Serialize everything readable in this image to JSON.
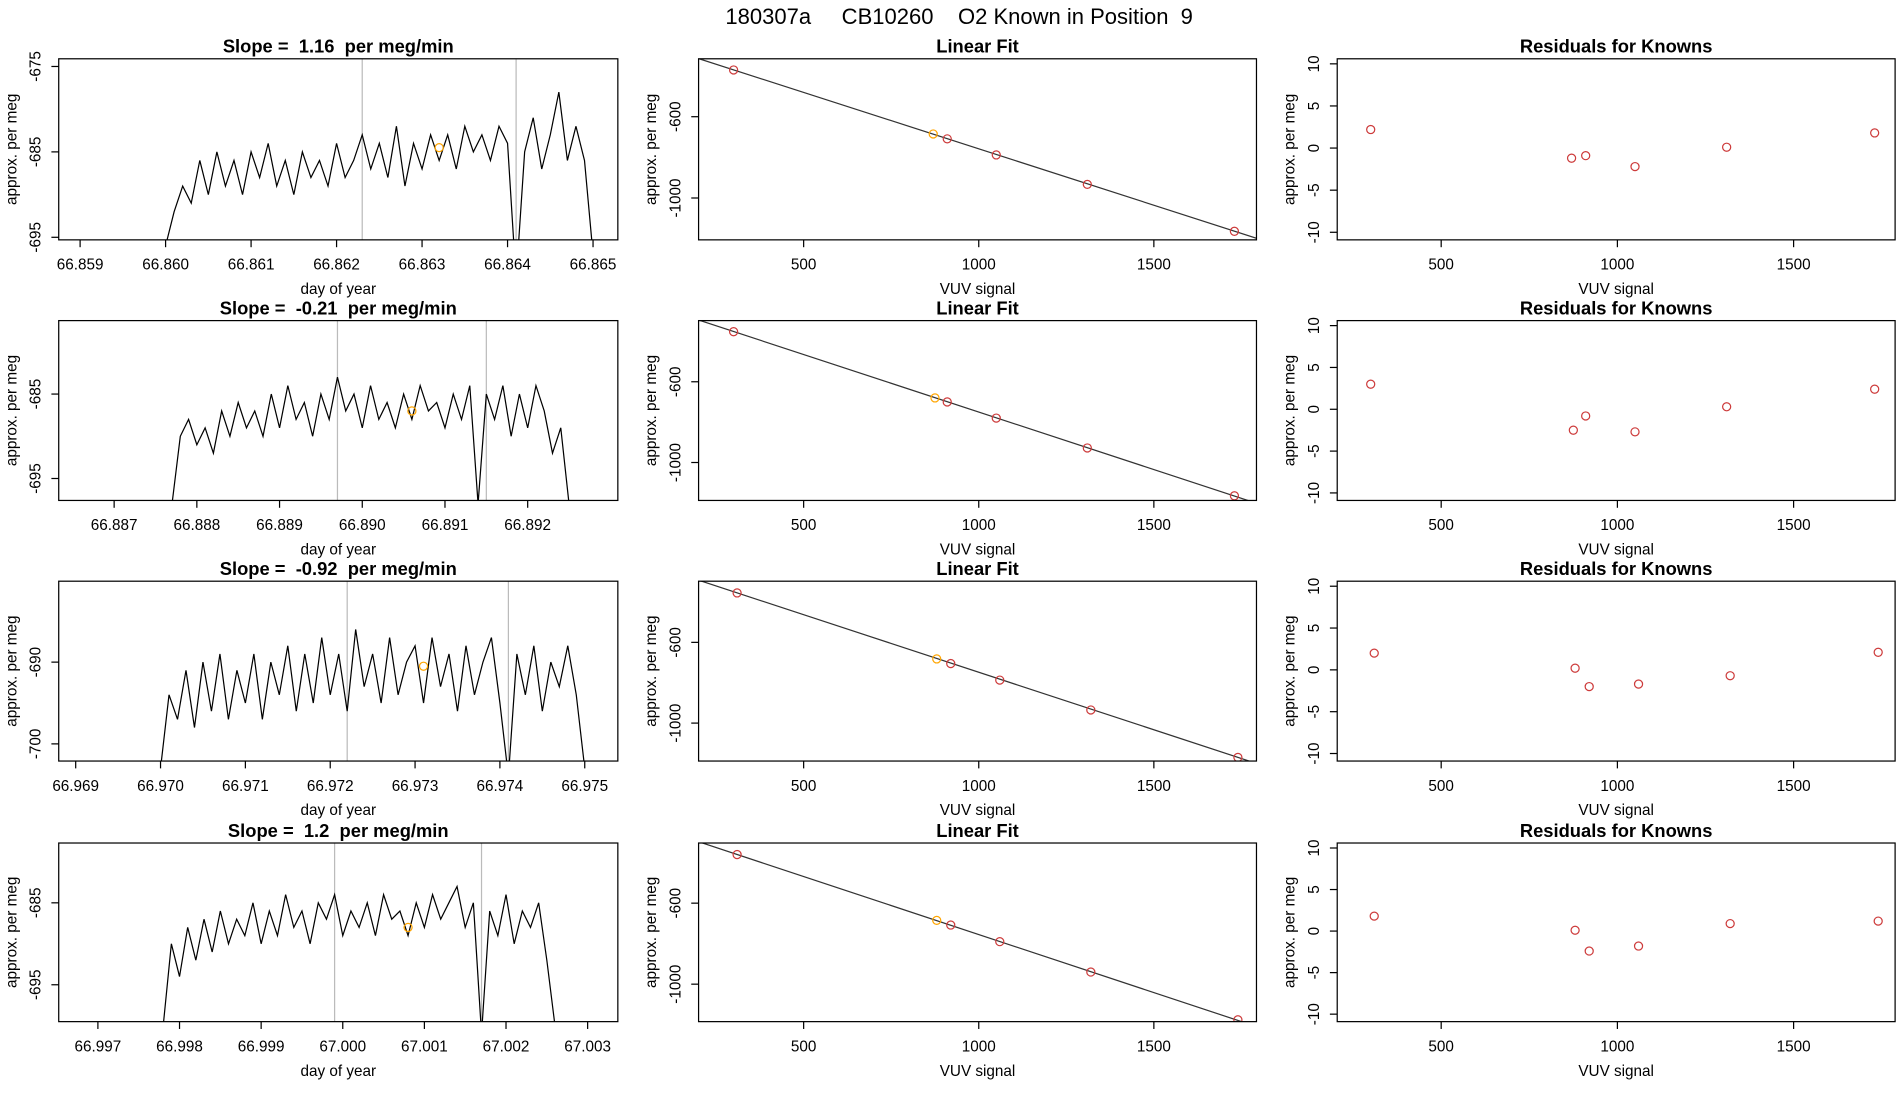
{
  "title": "180307a     CB10260    O2 Known in Position  9",
  "chart_data": [
    {
      "type": "line",
      "title": "Slope =  1.16  per meg/min",
      "xlabel": "day of year",
      "ylabel": "approx. per meg",
      "xlim": [
        66.85875,
        66.86529
      ],
      "xticks": [
        66.859,
        {
          "value": 66.86,
          "label": "66.860"
        },
        66.861,
        66.862,
        66.863,
        66.864,
        66.865
      ],
      "ylim": [
        -695.3,
        -674.1
      ],
      "yticks": [
        -695,
        -685,
        -675
      ],
      "vlines": [
        66.8623,
        66.8641
      ],
      "series": [
        {
          "color": "#000000",
          "x": [
            66.86,
            66.8601,
            66.8602,
            66.8603,
            66.8604,
            66.8605,
            66.8606,
            66.8607,
            66.8608,
            66.8609,
            66.861,
            66.8611,
            66.8612,
            66.8613,
            66.8614,
            66.8615,
            66.8616,
            66.8617,
            66.8618,
            66.8619,
            66.862,
            66.8621,
            66.8622,
            66.8623,
            66.8624,
            66.8625,
            66.8626,
            66.8627,
            66.8628,
            66.8629,
            66.863,
            66.8631,
            66.8632,
            66.8633,
            66.8634,
            66.8635,
            66.8636,
            66.8637,
            66.8638,
            66.8639,
            66.864,
            66.8641,
            66.8642,
            66.8643,
            66.8644,
            66.8645,
            66.8646,
            66.8647,
            66.8648,
            66.8649,
            66.865
          ],
          "values": [
            -696,
            -692,
            -689,
            -691,
            -686,
            -690,
            -685,
            -689,
            -686,
            -690,
            -685,
            -688,
            -684,
            -689,
            -686,
            -690,
            -685,
            -688,
            -686,
            -689,
            -684,
            -688,
            -686,
            -683,
            -687,
            -684,
            -688,
            -682,
            -689,
            -684,
            -687,
            -683,
            -686,
            -683,
            -687,
            -682,
            -685,
            -683,
            -686,
            -682,
            -684,
            -700,
            -685,
            -681,
            -687,
            -683,
            -678,
            -686,
            -682,
            -686,
            -697
          ]
        },
        {
          "color": "#ffa500",
          "marker": "circle",
          "x": [
            66.8632
          ],
          "values": [
            -684.5
          ]
        }
      ]
    },
    {
      "type": "scatter",
      "title": "Linear Fit",
      "xlabel": "VUV signal",
      "ylabel": "approx. per meg",
      "xlim": [
        200,
        1793
      ],
      "xticks": [
        500,
        1000,
        1500
      ],
      "ylim": [
        -1206,
        -315
      ],
      "yticks": [
        -1000,
        -600
      ],
      "fit": {
        "slope": -0.555,
        "intercept": -203
      },
      "series": [
        {
          "color": "#cd3b3b",
          "x": [
            300,
            910,
            1050,
            1310,
            1730
          ],
          "values": [
            -370,
            -709,
            -788,
            -933,
            -1164
          ]
        },
        {
          "color": "#ffa500",
          "x": [
            870
          ],
          "values": [
            -685
          ]
        }
      ]
    },
    {
      "type": "scatter",
      "title": "Residuals for Knowns",
      "xlabel": "VUV signal",
      "ylabel": "approx. per meg",
      "xlim": [
        205,
        1788
      ],
      "xticks": [
        500,
        1000,
        1500
      ],
      "ylim": [
        -10.9,
        10.6
      ],
      "yticks": [
        -10,
        -5,
        0,
        5,
        10
      ],
      "series": [
        {
          "color": "#cd3b3b",
          "x": [
            300,
            870,
            910,
            1050,
            1310,
            1730
          ],
          "values": [
            2.2,
            -1.2,
            -0.9,
            -2.2,
            0.1,
            1.8
          ]
        }
      ]
    },
    {
      "type": "line",
      "title": "Slope =  -0.21  per meg/min",
      "xlabel": "day of year",
      "ylabel": "approx. per meg",
      "xlim": [
        66.88633,
        66.89309
      ],
      "xticks": [
        66.887,
        66.888,
        66.889,
        {
          "value": 66.89,
          "label": "66.890"
        },
        66.891,
        66.892
      ],
      "ylim": [
        -697.6,
        -676.3
      ],
      "yticks": [
        -695,
        -685
      ],
      "vlines": [
        66.8897,
        66.8915
      ],
      "series": [
        {
          "color": "#000000",
          "x": [
            66.8877,
            66.8878,
            66.8879,
            66.888,
            66.8881,
            66.8882,
            66.8883,
            66.8884,
            66.8885,
            66.8886,
            66.8887,
            66.8888,
            66.8889,
            66.889,
            66.8891,
            66.8892,
            66.8893,
            66.8894,
            66.8895,
            66.8896,
            66.8897,
            66.8898,
            66.8899,
            66.89,
            66.8901,
            66.8902,
            66.8903,
            66.8904,
            66.8905,
            66.8906,
            66.8907,
            66.8908,
            66.8909,
            66.891,
            66.8911,
            66.8912,
            66.8913,
            66.8914,
            66.8915,
            66.8916,
            66.8917,
            66.8918,
            66.8919,
            66.892,
            66.8921,
            66.8922,
            66.8923,
            66.8924,
            66.8925
          ],
          "values": [
            -698,
            -690,
            -688,
            -691,
            -689,
            -692,
            -687,
            -690,
            -686,
            -689,
            -687,
            -690,
            -685,
            -689,
            -684,
            -688,
            -686,
            -690,
            -685,
            -688,
            -683,
            -687,
            -685,
            -689,
            -684,
            -688,
            -686,
            -689,
            -685,
            -688,
            -684,
            -687,
            -686,
            -689,
            -685,
            -688,
            -684,
            -698,
            -685,
            -688,
            -684,
            -690,
            -685,
            -689,
            -684,
            -687,
            -692,
            -689,
            -698
          ]
        },
        {
          "color": "#ffa500",
          "marker": "circle",
          "x": [
            66.8906
          ],
          "values": [
            -687
          ]
        }
      ]
    },
    {
      "type": "scatter",
      "title": "Linear Fit",
      "xlabel": "VUV signal",
      "ylabel": "approx. per meg",
      "xlim": [
        200,
        1793
      ],
      "xticks": [
        500,
        1000,
        1500
      ],
      "ylim": [
        -1188,
        -297
      ],
      "yticks": [
        -1000,
        -600
      ],
      "fit": {
        "slope": -0.57,
        "intercept": -180
      },
      "series": [
        {
          "color": "#cd3b3b",
          "x": [
            300,
            910,
            1050,
            1310,
            1730
          ],
          "values": [
            -352,
            -700,
            -780,
            -928,
            -1165
          ]
        },
        {
          "color": "#ffa500",
          "x": [
            875
          ],
          "values": [
            -680
          ]
        }
      ]
    },
    {
      "type": "scatter",
      "title": "Residuals for Knowns",
      "xlabel": "VUV signal",
      "ylabel": "approx. per meg",
      "xlim": [
        205,
        1788
      ],
      "xticks": [
        500,
        1000,
        1500
      ],
      "ylim": [
        -10.9,
        10.6
      ],
      "yticks": [
        -10,
        -5,
        0,
        5,
        10
      ],
      "series": [
        {
          "color": "#cd3b3b",
          "x": [
            300,
            875,
            910,
            1050,
            1310,
            1730
          ],
          "values": [
            3.0,
            -2.5,
            -0.8,
            -2.7,
            0.3,
            2.4
          ]
        }
      ]
    },
    {
      "type": "line",
      "title": "Slope =  -0.92  per meg/min",
      "xlabel": "day of year",
      "ylabel": "approx. per meg",
      "xlim": [
        66.9688,
        66.97539
      ],
      "xticks": [
        66.969,
        {
          "value": 66.97,
          "label": "66.970"
        },
        66.971,
        66.972,
        66.973,
        66.974,
        66.975
      ],
      "ylim": [
        -702.1,
        -680.1
      ],
      "yticks": [
        -700,
        -690
      ],
      "vlines": [
        66.9722,
        66.9741
      ],
      "series": [
        {
          "color": "#000000",
          "x": [
            66.97,
            66.9701,
            66.9702,
            66.9703,
            66.9704,
            66.9705,
            66.9706,
            66.9707,
            66.9708,
            66.9709,
            66.971,
            66.9711,
            66.9712,
            66.9713,
            66.9714,
            66.9715,
            66.9716,
            66.9717,
            66.9718,
            66.9719,
            66.972,
            66.9721,
            66.9722,
            66.9723,
            66.9724,
            66.9725,
            66.9726,
            66.9727,
            66.9728,
            66.9729,
            66.973,
            66.9731,
            66.9732,
            66.9733,
            66.9734,
            66.9735,
            66.9736,
            66.9737,
            66.9738,
            66.9739,
            66.974,
            66.9741,
            66.9742,
            66.9743,
            66.9744,
            66.9745,
            66.9746,
            66.9747,
            66.9748,
            66.9749,
            66.975
          ],
          "values": [
            -703,
            -694,
            -697,
            -691,
            -698,
            -690,
            -696,
            -689,
            -697,
            -691,
            -695,
            -689,
            -697,
            -690,
            -694,
            -688,
            -696,
            -689,
            -695,
            -687,
            -694,
            -689,
            -696,
            -686,
            -693,
            -689,
            -695,
            -687,
            -694,
            -690,
            -688,
            -695,
            -687,
            -693,
            -689,
            -696,
            -688,
            -694,
            -690,
            -687,
            -695,
            -704,
            -689,
            -694,
            -688,
            -696,
            -690,
            -693,
            -688,
            -694,
            -703
          ]
        },
        {
          "color": "#ffa500",
          "marker": "circle",
          "x": [
            66.9731
          ],
          "values": [
            -690.5
          ]
        }
      ]
    },
    {
      "type": "scatter",
      "title": "Linear Fit",
      "xlabel": "VUV signal",
      "ylabel": "approx. per meg",
      "xlim": [
        200,
        1793
      ],
      "xticks": [
        500,
        1000,
        1500
      ],
      "ylim": [
        -1188,
        -297
      ],
      "yticks": [
        -1000,
        -600
      ],
      "fit": {
        "slope": -0.57,
        "intercept": -178
      },
      "series": [
        {
          "color": "#cd3b3b",
          "x": [
            310,
            920,
            1060,
            1320,
            1740
          ],
          "values": [
            -355,
            -705,
            -787,
            -935,
            -1170
          ]
        },
        {
          "color": "#ffa500",
          "x": [
            880
          ],
          "values": [
            -682
          ]
        }
      ]
    },
    {
      "type": "scatter",
      "title": "Residuals for Knowns",
      "xlabel": "VUV signal",
      "ylabel": "approx. per meg",
      "xlim": [
        205,
        1788
      ],
      "xticks": [
        500,
        1000,
        1500
      ],
      "ylim": [
        -10.9,
        10.6
      ],
      "yticks": [
        -10,
        -5,
        0,
        5,
        10
      ],
      "series": [
        {
          "color": "#cd3b3b",
          "x": [
            310,
            880,
            920,
            1060,
            1320,
            1740
          ],
          "values": [
            2.0,
            0.2,
            -2.0,
            -1.7,
            -0.7,
            2.1
          ]
        }
      ]
    },
    {
      "type": "line",
      "title": "Slope =  1.2  per meg/min",
      "xlabel": "day of year",
      "ylabel": "approx. per meg",
      "xlim": [
        66.99652,
        67.00337
      ],
      "xticks": [
        66.997,
        66.998,
        66.999,
        {
          "value": 67,
          "label": "67.000"
        },
        67.001,
        67.002,
        67.003
      ],
      "ylim": [
        -699.5,
        -677.7
      ],
      "yticks": [
        -695,
        -685
      ],
      "vlines": [
        66.9999,
        67.0017
      ],
      "series": [
        {
          "color": "#000000",
          "x": [
            66.9978,
            66.9979,
            66.998,
            66.9981,
            66.9982,
            66.9983,
            66.9984,
            66.9985,
            66.9986,
            66.9987,
            66.9988,
            66.9989,
            66.999,
            66.9991,
            66.9992,
            66.9993,
            66.9994,
            66.9995,
            66.9996,
            66.9997,
            66.9998,
            66.9999,
            67,
            67.0001,
            67.0002,
            67.0003,
            67.0004,
            67.0005,
            67.0006,
            67.0007,
            67.0008,
            67.0009,
            67.001,
            67.0011,
            67.0012,
            67.0013,
            67.0014,
            67.0015,
            67.0016,
            67.0017,
            67.0018,
            67.0019,
            67.002,
            67.0021,
            67.0022,
            67.0023,
            67.0024,
            67.0025,
            67.0026
          ],
          "values": [
            -700,
            -690,
            -694,
            -688,
            -692,
            -687,
            -691,
            -686,
            -690,
            -687,
            -689,
            -685,
            -690,
            -686,
            -689,
            -684,
            -688,
            -686,
            -690,
            -685,
            -687,
            -684,
            -689,
            -686,
            -688,
            -685,
            -689,
            -684,
            -687,
            -686,
            -689,
            -685,
            -688,
            -684,
            -687,
            -685,
            -683,
            -688,
            -685,
            -701,
            -686,
            -689,
            -684,
            -690,
            -686,
            -688,
            -685,
            -692,
            -700
          ]
        },
        {
          "color": "#ffa500",
          "marker": "circle",
          "x": [
            67.0008
          ],
          "values": [
            -688
          ]
        }
      ]
    },
    {
      "type": "scatter",
      "title": "Linear Fit",
      "xlabel": "VUV signal",
      "ylabel": "approx. per meg",
      "xlim": [
        200,
        1793
      ],
      "xticks": [
        500,
        1000,
        1500
      ],
      "ylim": [
        -1185,
        -303
      ],
      "yticks": [
        -1000,
        -600
      ],
      "fit": {
        "slope": -0.573,
        "intercept": -182
      },
      "series": [
        {
          "color": "#cd3b3b",
          "x": [
            310,
            920,
            1060,
            1320,
            1740
          ],
          "values": [
            -360,
            -708,
            -790,
            -940,
            -1176
          ]
        },
        {
          "color": "#ffa500",
          "x": [
            880
          ],
          "values": [
            -685
          ]
        }
      ]
    },
    {
      "type": "scatter",
      "title": "Residuals for Knowns",
      "xlabel": "VUV signal",
      "ylabel": "approx. per meg",
      "xlim": [
        205,
        1788
      ],
      "xticks": [
        500,
        1000,
        1500
      ],
      "ylim": [
        -10.9,
        10.6
      ],
      "yticks": [
        -10,
        -5,
        0,
        5,
        10
      ],
      "series": [
        {
          "color": "#cd3b3b",
          "x": [
            310,
            880,
            920,
            1060,
            1320,
            1740
          ],
          "values": [
            1.8,
            0.1,
            -2.4,
            -1.8,
            0.9,
            1.2
          ]
        }
      ]
    }
  ]
}
